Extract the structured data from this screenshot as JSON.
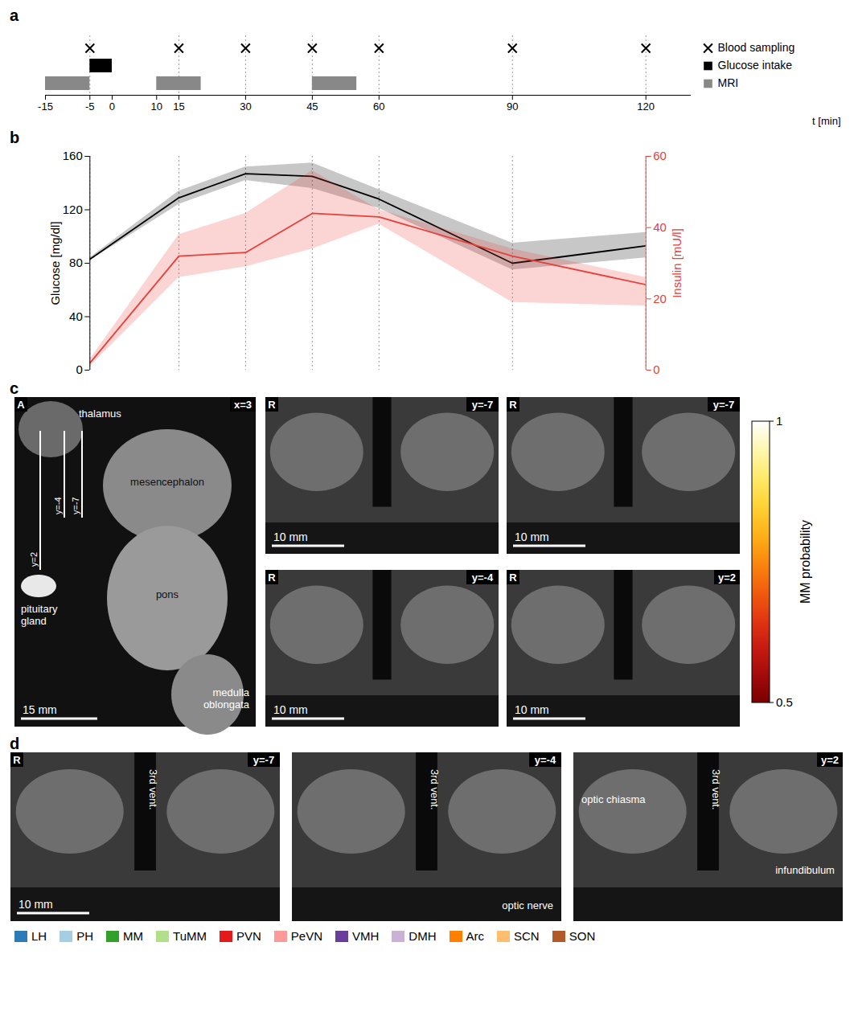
{
  "chart_data": [
    {
      "type": "timeline",
      "panel": "a",
      "xlabel": "t [min]",
      "xlim": [
        -15,
        130
      ],
      "xticks": [
        -15,
        -5,
        0,
        10,
        15,
        30,
        45,
        60,
        90,
        120
      ],
      "grid": true,
      "series": [
        {
          "name": "Blood sampling",
          "marker": "x",
          "color": "#000000",
          "x": [
            -5,
            15,
            30,
            45,
            60,
            90,
            120
          ]
        },
        {
          "name": "Glucose intake",
          "color": "#000000",
          "intervals": [
            [
              -5,
              0
            ]
          ]
        },
        {
          "name": "MRI",
          "color": "#888888",
          "intervals": [
            [
              -15,
              -5
            ],
            [
              10,
              20
            ],
            [
              45,
              55
            ]
          ]
        }
      ]
    },
    {
      "type": "line",
      "panel": "b",
      "x": [
        -5,
        15,
        30,
        45,
        60,
        90,
        120
      ],
      "xlim": [
        -5,
        120
      ],
      "xticks": [],
      "grid": true,
      "ylim": [
        0,
        160
      ],
      "yticks": [
        0,
        40,
        80,
        120,
        160
      ],
      "ylabel": "Glucose [mg/dl]",
      "y2lim": [
        0,
        60
      ],
      "y2ticks": [
        0,
        20,
        40,
        60
      ],
      "y2label": "Insulin [mU/l]",
      "series": [
        {
          "color": "#000000",
          "values": [
            83,
            129,
            147,
            145,
            128,
            80,
            93
          ],
          "lower": [
            82,
            124,
            142,
            136,
            121,
            75,
            84
          ],
          "upper": [
            84,
            134,
            152,
            155,
            135,
            95,
            103
          ]
        },
        {
          "color": "#e8403a",
          "axis": "y2",
          "values": [
            2,
            32,
            33,
            44,
            43,
            32,
            24
          ],
          "lower": [
            1,
            26,
            29,
            34,
            41,
            19,
            18
          ],
          "upper": [
            3,
            38,
            44,
            56,
            45,
            34,
            26
          ]
        }
      ]
    }
  ],
  "panel_c": {
    "letter": "c",
    "sagittal": {
      "corner": "A",
      "slice": "x=3",
      "scale_bar": "15 mm",
      "labels": [
        "thalamus",
        "mesencephalon",
        "pons",
        "pituitary gland",
        "medulla oblongata"
      ],
      "slice_lines": [
        "y=2",
        "y=-4",
        "y=-7"
      ]
    },
    "coronal": [
      {
        "corner": "R",
        "slice": "y=-7",
        "scale_bar": "10 mm"
      },
      {
        "corner": "R",
        "slice": "y=-7",
        "scale_bar": "10 mm"
      },
      {
        "corner": "R",
        "slice": "y=-4",
        "scale_bar": "10 mm"
      },
      {
        "corner": "R",
        "slice": "y=2",
        "scale_bar": "10 mm"
      }
    ],
    "colorbar": {
      "label": "MM probability",
      "lim": [
        0.5,
        1
      ],
      "ticks": [
        0.5,
        1
      ]
    }
  },
  "panel_d": {
    "letter": "d",
    "slices": [
      {
        "corner": "R",
        "slice": "y=-7",
        "scale_bar": "10 mm",
        "labels": [
          "3rd vent."
        ]
      },
      {
        "slice": "y=-4",
        "labels": [
          "3rd vent.",
          "optic nerve"
        ]
      },
      {
        "slice": "y=2",
        "labels": [
          "3rd vent.",
          "optic chiasma",
          "infundibulum"
        ]
      }
    ],
    "legend": [
      {
        "name": "LH",
        "color": "#2b7bba"
      },
      {
        "name": "PH",
        "color": "#a6cee3"
      },
      {
        "name": "MM",
        "color": "#33a02c"
      },
      {
        "name": "TuMM",
        "color": "#b2df8a"
      },
      {
        "name": "PVN",
        "color": "#e31a1c"
      },
      {
        "name": "PeVN",
        "color": "#fb9a99"
      },
      {
        "name": "VMH",
        "color": "#6a3d9a"
      },
      {
        "name": "DMH",
        "color": "#cab2d6"
      },
      {
        "name": "Arc",
        "color": "#ff7f00"
      },
      {
        "name": "SCN",
        "color": "#fdbf6f"
      },
      {
        "name": "SON",
        "color": "#b15928"
      }
    ]
  }
}
